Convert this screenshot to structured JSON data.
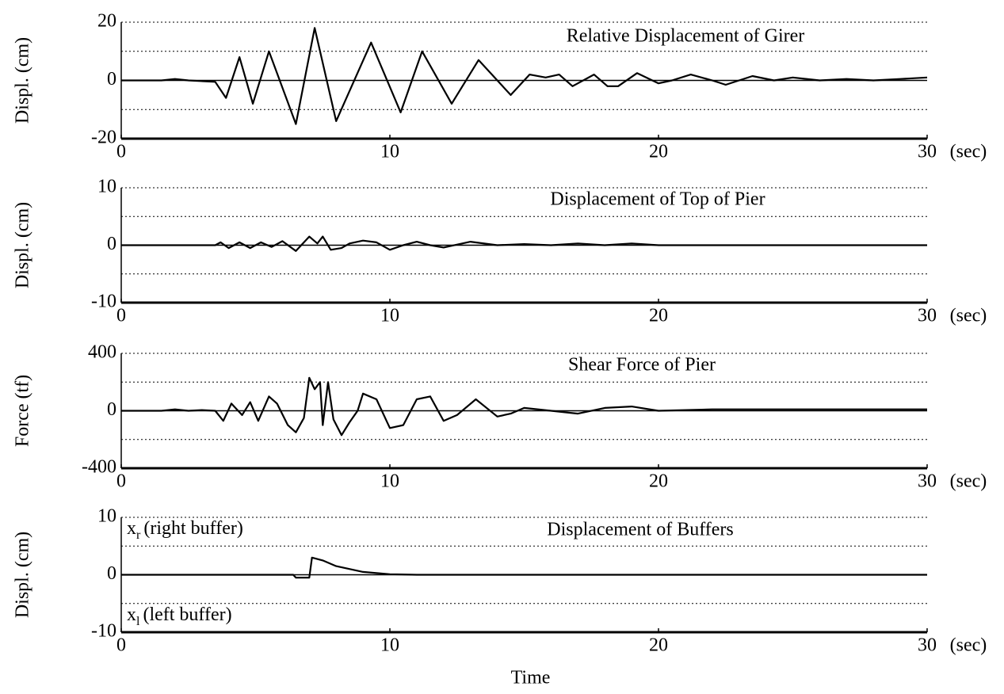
{
  "chart_data": [
    {
      "type": "line",
      "title": "Relative Displacement of Girer",
      "ylabel": "Displ. (cm)",
      "xunit": "(sec)",
      "xlim": [
        0,
        30
      ],
      "xticks": [
        0,
        10,
        20,
        30
      ],
      "ylim": [
        -20,
        20
      ],
      "yticks": [
        -20,
        0,
        20
      ],
      "minor_yticks": [
        -10,
        10
      ],
      "grid": true,
      "series": [
        {
          "color": "#000000",
          "x": [
            0,
            1.5,
            2,
            2.5,
            3.5,
            3.9,
            4.4,
            4.9,
            5.5,
            6.5,
            7.2,
            8.0,
            9.3,
            10.4,
            11.2,
            12.3,
            13.3,
            14.5,
            15.2,
            15.8,
            16.3,
            16.8,
            17.6,
            18.1,
            18.5,
            19.2,
            20,
            20.5,
            21.2,
            22,
            22.5,
            23.5,
            24.3,
            25,
            26,
            27,
            28,
            29,
            30
          ],
          "values": [
            0,
            0,
            0.5,
            0,
            -0.5,
            -6,
            8,
            -8,
            10,
            -15,
            18,
            -14,
            13,
            -11,
            10,
            -8,
            7,
            -5,
            2,
            1,
            2,
            -2,
            2,
            -2,
            -2,
            2.5,
            -1,
            0,
            2,
            0,
            -1.5,
            1.5,
            0,
            1,
            0,
            0.5,
            0,
            0.5,
            1
          ]
        }
      ]
    },
    {
      "type": "line",
      "title": "Displacement of Top of Pier",
      "ylabel": "Displ. (cm)",
      "xunit": "(sec)",
      "xlim": [
        0,
        30
      ],
      "xticks": [
        0,
        10,
        20,
        30
      ],
      "ylim": [
        -10,
        10
      ],
      "yticks": [
        -10,
        0,
        10
      ],
      "minor_yticks": [
        -5,
        5
      ],
      "grid": true,
      "series": [
        {
          "color": "#000000",
          "x": [
            0,
            3.5,
            3.7,
            4,
            4.4,
            4.8,
            5.2,
            5.6,
            6,
            6.5,
            7,
            7.3,
            7.5,
            7.8,
            8.2,
            8.5,
            9,
            9.5,
            10,
            10.5,
            11,
            11.5,
            12,
            13,
            14,
            15,
            16,
            17,
            18,
            19,
            20,
            30
          ],
          "values": [
            0,
            0,
            0.5,
            -0.5,
            0.5,
            -0.5,
            0.5,
            -0.3,
            0.7,
            -1,
            1.5,
            0.3,
            1.5,
            -0.8,
            -0.5,
            0.3,
            0.8,
            0.5,
            -0.8,
            0,
            0.6,
            0,
            -0.4,
            0.6,
            0,
            0.2,
            0,
            0.3,
            0,
            0.3,
            0,
            0
          ]
        }
      ]
    },
    {
      "type": "line",
      "title": "Shear Force of Pier",
      "ylabel": "Force (tf)",
      "xunit": "(sec)",
      "xlim": [
        0,
        30
      ],
      "xticks": [
        0,
        10,
        20,
        30
      ],
      "ylim": [
        -400,
        400
      ],
      "yticks": [
        -400,
        0,
        400
      ],
      "minor_yticks": [
        -200,
        200
      ],
      "grid": true,
      "series": [
        {
          "color": "#000000",
          "x": [
            0,
            1.5,
            2,
            2.5,
            3,
            3.5,
            3.8,
            4.1,
            4.5,
            4.8,
            5.1,
            5.5,
            5.8,
            6.2,
            6.5,
            6.8,
            7.0,
            7.2,
            7.4,
            7.5,
            7.7,
            7.9,
            8.2,
            8.5,
            8.8,
            9,
            9.5,
            10,
            10.5,
            11,
            11.5,
            12,
            12.5,
            13.2,
            14,
            14.5,
            15,
            16,
            17,
            18,
            19,
            20,
            22,
            25,
            30
          ],
          "values": [
            0,
            0,
            10,
            0,
            5,
            0,
            -70,
            50,
            -30,
            60,
            -70,
            100,
            50,
            -100,
            -150,
            -50,
            230,
            150,
            200,
            -100,
            200,
            -60,
            -170,
            -80,
            0,
            120,
            80,
            -120,
            -100,
            80,
            100,
            -70,
            -30,
            80,
            -40,
            -20,
            20,
            0,
            -20,
            20,
            30,
            0,
            10,
            10,
            10
          ]
        }
      ]
    },
    {
      "type": "line",
      "title": "Displacement of Buffers",
      "ylabel": "Displ. (cm)",
      "xlabel": "Time",
      "xunit": "(sec)",
      "xlim": [
        0,
        30
      ],
      "xticks": [
        0,
        10,
        20,
        30
      ],
      "ylim": [
        -10,
        10
      ],
      "yticks": [
        -10,
        0,
        10
      ],
      "minor_yticks": [
        -5,
        5
      ],
      "grid": true,
      "annotations": [
        {
          "base": "x",
          "subscript": "r",
          "text": "(right buffer)"
        },
        {
          "base": "x",
          "subscript": "l",
          "text": "(left buffer)"
        }
      ],
      "series": [
        {
          "color": "#000000",
          "x": [
            0,
            6.4,
            6.5,
            7.0,
            7.1,
            7.5,
            8,
            9,
            10,
            11,
            30
          ],
          "values": [
            0,
            0,
            -0.5,
            -0.5,
            3,
            2.5,
            1.5,
            0.5,
            0.1,
            0,
            0
          ]
        }
      ]
    }
  ]
}
